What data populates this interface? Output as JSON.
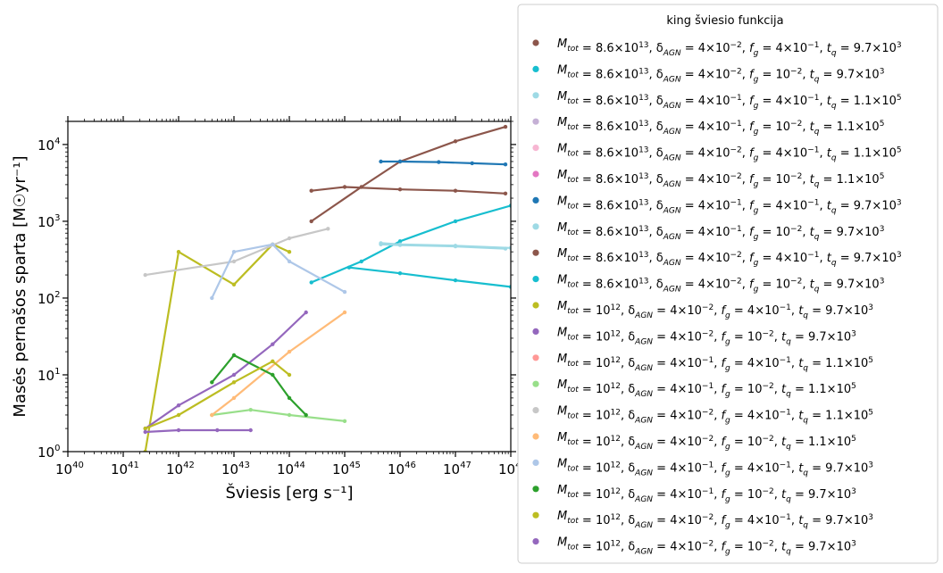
{
  "chart_data": {
    "type": "scatter",
    "xlabel": "Šviesis [erg s⁻¹]",
    "ylabel": "Masės pernašos sparta [M☉yr⁻¹]",
    "x_scale": "log",
    "y_scale": "log",
    "xlim": [
      1e+40,
      1e+48
    ],
    "ylim": [
      1,
      20000
    ],
    "x_ticks": [
      {
        "value": 1e+40,
        "base": "10",
        "exp": "40"
      },
      {
        "value": 1e+41,
        "base": "10",
        "exp": "41"
      },
      {
        "value": 1e+42,
        "base": "10",
        "exp": "42"
      },
      {
        "value": 1e+43,
        "base": "10",
        "exp": "43"
      },
      {
        "value": 1e+44,
        "base": "10",
        "exp": "44"
      },
      {
        "value": 1e+45,
        "base": "10",
        "exp": "45"
      },
      {
        "value": 1e+46,
        "base": "10",
        "exp": "46"
      },
      {
        "value": 1e+47,
        "base": "10",
        "exp": "47"
      },
      {
        "value": 1e+48,
        "base": "10",
        "exp": "48"
      }
    ],
    "y_ticks": [
      {
        "value": 1,
        "base": "10",
        "exp": "0"
      },
      {
        "value": 10,
        "base": "10",
        "exp": "1"
      },
      {
        "value": 100,
        "base": "10",
        "exp": "2"
      },
      {
        "value": 1000,
        "base": "10",
        "exp": "3"
      },
      {
        "value": 10000,
        "base": "10",
        "exp": "4"
      }
    ],
    "legend_title": "king šviesio funkcija",
    "legend_location": "outside-right",
    "grid": false,
    "series": [
      {
        "name": "M_tot = 8.6×10^13, δ_AGN = 4×10^-2, f_g = 4×10^-1, t_q = 9.7×10^3",
        "color": "#8c564b",
        "x": [
          2.5e+44,
          2e+45,
          1e+46,
          1e+47,
          8e+47
        ],
        "y": [
          1000,
          2800,
          6000,
          11000,
          17000
        ]
      },
      {
        "name": "M_tot = 8.6×10^13, δ_AGN = 4×10^-2, f_g = 10^-2, t_q = 9.7×10^3",
        "color": "#17becf",
        "x": [
          2.5e+44,
          2e+45,
          1e+46,
          1e+47,
          1e+48
        ],
        "y": [
          160,
          300,
          550,
          1000,
          1600
        ]
      },
      {
        "name": "M_tot = 8.6×10^13, δ_AGN = 4×10^-1, f_g = 4×10^-1, t_q = 1.1×10^5",
        "color": "#9edae5",
        "x": [
          4.5e+45,
          1e+46,
          1e+47,
          1e+48
        ],
        "y": [
          520,
          500,
          480,
          450
        ]
      },
      {
        "name": "M_tot = 8.6×10^13, δ_AGN = 4×10^-1, f_g = 10^-2, t_q = 1.1×10^5",
        "color": "#c5b0d5",
        "x": [],
        "y": []
      },
      {
        "name": "M_tot = 8.6×10^13, δ_AGN = 4×10^-2, f_g = 4×10^-1, t_q = 1.1×10^5",
        "color": "#f7b6d2",
        "x": [],
        "y": []
      },
      {
        "name": "M_tot = 8.6×10^13, δ_AGN = 4×10^-2, f_g = 10^-2, t_q = 1.1×10^5",
        "color": "#e377c2",
        "x": [],
        "y": []
      },
      {
        "name": "M_tot = 8.6×10^13, δ_AGN = 4×10^-1, f_g = 4×10^-1, t_q = 9.7×10^3",
        "color": "#1f77b4",
        "x": [
          4.5e+45,
          1e+46,
          5e+46,
          2e+47,
          8e+47
        ],
        "y": [
          6000,
          6000,
          5900,
          5700,
          5500
        ]
      },
      {
        "name": "M_tot = 8.6×10^13, δ_AGN = 4×10^-1, f_g = 10^-2, t_q = 9.7×10^3",
        "color": "#9edae5",
        "x": [
          4.5e+45,
          1e+46,
          1e+47,
          8e+47
        ],
        "y": [
          500,
          490,
          470,
          440
        ]
      },
      {
        "name": "M_tot = 8.6×10^13, δ_AGN = 4×10^-2, f_g = 4×10^-1, t_q = 9.7×10^3",
        "color": "#8c564b",
        "x": [
          2.5e+44,
          1e+45,
          1e+46,
          1e+47,
          8e+47
        ],
        "y": [
          2500,
          2800,
          2600,
          2500,
          2300
        ]
      },
      {
        "name": "M_tot = 8.6×10^13, δ_AGN = 4×10^-2, f_g = 10^-2, t_q = 9.7×10^3",
        "color": "#17becf",
        "x": [
          1.2e+45,
          1e+46,
          1e+47,
          1e+48
        ],
        "y": [
          250,
          210,
          170,
          140
        ]
      },
      {
        "name": "M_tot = 10^12, δ_AGN = 4×10^-2, f_g = 4×10^-1, t_q = 9.7×10^3",
        "color": "#bcbd22",
        "x": [
          2.5e+41,
          1e+42,
          1e+43,
          5e+43,
          1e+44
        ],
        "y": [
          1,
          400,
          150,
          500,
          400
        ]
      },
      {
        "name": "M_tot = 10^12, δ_AGN = 4×10^-2, f_g = 10^-2, t_q = 9.7×10^3",
        "color": "#9467bd",
        "x": [
          2.5e+41,
          1e+42,
          1e+43,
          5e+43,
          2e+44
        ],
        "y": [
          2,
          4,
          10,
          25,
          65
        ]
      },
      {
        "name": "M_tot = 10^12, δ_AGN = 4×10^-1, f_g = 4×10^-1, t_q = 1.1×10^5",
        "color": "#ff9896",
        "x": [],
        "y": []
      },
      {
        "name": "M_tot = 10^12, δ_AGN = 4×10^-1, f_g = 10^-2, t_q = 1.1×10^5",
        "color": "#98df8a",
        "x": [
          4e+42,
          2e+43,
          1e+44,
          1e+45
        ],
        "y": [
          3,
          3.5,
          3,
          2.5
        ]
      },
      {
        "name": "M_tot = 10^12, δ_AGN = 4×10^-2, f_g = 4×10^-1, t_q = 1.1×10^5",
        "color": "#c7c7c7",
        "x": [
          2.5e+41,
          1e+43,
          1e+44,
          5e+44
        ],
        "y": [
          200,
          300,
          600,
          800
        ]
      },
      {
        "name": "M_tot = 10^12, δ_AGN = 4×10^-2, f_g = 10^-2, t_q = 1.1×10^5",
        "color": "#ffbb78",
        "x": [
          4e+42,
          1e+43,
          1e+44,
          1e+45
        ],
        "y": [
          3,
          5,
          20,
          65
        ]
      },
      {
        "name": "M_tot = 10^12, δ_AGN = 4×10^-1, f_g = 4×10^-1, t_q = 9.7×10^3",
        "color": "#aec7e8",
        "x": [
          4e+42,
          1e+43,
          5e+43,
          1e+44,
          1e+45
        ],
        "y": [
          100,
          400,
          500,
          300,
          120
        ]
      },
      {
        "name": "M_tot = 10^12, δ_AGN = 4×10^-1, f_g = 10^-2, t_q = 9.7×10^3",
        "color": "#2ca02c",
        "x": [
          4e+42,
          1e+43,
          5e+43,
          1e+44,
          2e+44
        ],
        "y": [
          8,
          18,
          10,
          5,
          3
        ]
      },
      {
        "name": "M_tot = 10^12, δ_AGN = 4×10^-2, f_g = 4×10^-1, t_q = 9.7×10^3",
        "color": "#bcbd22",
        "x": [
          2.5e+41,
          1e+42,
          1e+43,
          5e+43,
          1e+44
        ],
        "y": [
          2,
          3,
          8,
          15,
          10
        ]
      },
      {
        "name": "M_tot = 10^12, δ_AGN = 4×10^-2, f_g = 10^-2, t_q = 9.7×10^3",
        "color": "#9467bd",
        "x": [
          2.5e+41,
          1e+42,
          5e+42,
          2e+43
        ],
        "y": [
          1.8,
          1.9,
          1.9,
          1.9
        ]
      }
    ],
    "legend": [
      {
        "color": "#8c564b",
        "mtot_base": "8.6×10",
        "mtot_exp": "13",
        "dagn_base": "4×10",
        "dagn_exp": "−2",
        "fg_base": "4×10",
        "fg_exp": "−1",
        "tq_base": "9.7×10",
        "tq_exp": "3"
      },
      {
        "color": "#17becf",
        "mtot_base": "8.6×10",
        "mtot_exp": "13",
        "dagn_base": "4×10",
        "dagn_exp": "−2",
        "fg_base": "10",
        "fg_exp": "−2",
        "tq_base": "9.7×10",
        "tq_exp": "3"
      },
      {
        "color": "#9edae5",
        "mtot_base": "8.6×10",
        "mtot_exp": "13",
        "dagn_base": "4×10",
        "dagn_exp": "−1",
        "fg_base": "4×10",
        "fg_exp": "−1",
        "tq_base": "1.1×10",
        "tq_exp": "5"
      },
      {
        "color": "#c5b0d5",
        "mtot_base": "8.6×10",
        "mtot_exp": "13",
        "dagn_base": "4×10",
        "dagn_exp": "−1",
        "fg_base": "10",
        "fg_exp": "−2",
        "tq_base": "1.1×10",
        "tq_exp": "5"
      },
      {
        "color": "#f7b6d2",
        "mtot_base": "8.6×10",
        "mtot_exp": "13",
        "dagn_base": "4×10",
        "dagn_exp": "−2",
        "fg_base": "4×10",
        "fg_exp": "−1",
        "tq_base": "1.1×10",
        "tq_exp": "5"
      },
      {
        "color": "#e377c2",
        "mtot_base": "8.6×10",
        "mtot_exp": "13",
        "dagn_base": "4×10",
        "dagn_exp": "−2",
        "fg_base": "10",
        "fg_exp": "−2",
        "tq_base": "1.1×10",
        "tq_exp": "5"
      },
      {
        "color": "#1f77b4",
        "mtot_base": "8.6×10",
        "mtot_exp": "13",
        "dagn_base": "4×10",
        "dagn_exp": "−1",
        "fg_base": "4×10",
        "fg_exp": "−1",
        "tq_base": "9.7×10",
        "tq_exp": "3"
      },
      {
        "color": "#9edae5",
        "mtot_base": "8.6×10",
        "mtot_exp": "13",
        "dagn_base": "4×10",
        "dagn_exp": "−1",
        "fg_base": "10",
        "fg_exp": "−2",
        "tq_base": "9.7×10",
        "tq_exp": "3"
      },
      {
        "color": "#8c564b",
        "mtot_base": "8.6×10",
        "mtot_exp": "13",
        "dagn_base": "4×10",
        "dagn_exp": "−2",
        "fg_base": "4×10",
        "fg_exp": "−1",
        "tq_base": "9.7×10",
        "tq_exp": "3"
      },
      {
        "color": "#17becf",
        "mtot_base": "8.6×10",
        "mtot_exp": "13",
        "dagn_base": "4×10",
        "dagn_exp": "−2",
        "fg_base": "10",
        "fg_exp": "−2",
        "tq_base": "9.7×10",
        "tq_exp": "3"
      },
      {
        "color": "#bcbd22",
        "mtot_base": "10",
        "mtot_exp": "12",
        "dagn_base": "4×10",
        "dagn_exp": "−2",
        "fg_base": "4×10",
        "fg_exp": "−1",
        "tq_base": "9.7×10",
        "tq_exp": "3"
      },
      {
        "color": "#9467bd",
        "mtot_base": "10",
        "mtot_exp": "12",
        "dagn_base": "4×10",
        "dagn_exp": "−2",
        "fg_base": "10",
        "fg_exp": "−2",
        "tq_base": "9.7×10",
        "tq_exp": "3"
      },
      {
        "color": "#ff9896",
        "mtot_base": "10",
        "mtot_exp": "12",
        "dagn_base": "4×10",
        "dagn_exp": "−1",
        "fg_base": "4×10",
        "fg_exp": "−1",
        "tq_base": "1.1×10",
        "tq_exp": "5"
      },
      {
        "color": "#98df8a",
        "mtot_base": "10",
        "mtot_exp": "12",
        "dagn_base": "4×10",
        "dagn_exp": "−1",
        "fg_base": "10",
        "fg_exp": "−2",
        "tq_base": "1.1×10",
        "tq_exp": "5"
      },
      {
        "color": "#c7c7c7",
        "mtot_base": "10",
        "mtot_exp": "12",
        "dagn_base": "4×10",
        "dagn_exp": "−2",
        "fg_base": "4×10",
        "fg_exp": "−1",
        "tq_base": "1.1×10",
        "tq_exp": "5"
      },
      {
        "color": "#ffbb78",
        "mtot_base": "10",
        "mtot_exp": "12",
        "dagn_base": "4×10",
        "dagn_exp": "−2",
        "fg_base": "10",
        "fg_exp": "−2",
        "tq_base": "1.1×10",
        "tq_exp": "5"
      },
      {
        "color": "#aec7e8",
        "mtot_base": "10",
        "mtot_exp": "12",
        "dagn_base": "4×10",
        "dagn_exp": "−1",
        "fg_base": "4×10",
        "fg_exp": "−1",
        "tq_base": "9.7×10",
        "tq_exp": "3"
      },
      {
        "color": "#2ca02c",
        "mtot_base": "10",
        "mtot_exp": "12",
        "dagn_base": "4×10",
        "dagn_exp": "−1",
        "fg_base": "10",
        "fg_exp": "−2",
        "tq_base": "9.7×10",
        "tq_exp": "3"
      },
      {
        "color": "#bcbd22",
        "mtot_base": "10",
        "mtot_exp": "12",
        "dagn_base": "4×10",
        "dagn_exp": "−2",
        "fg_base": "4×10",
        "fg_exp": "−1",
        "tq_base": "9.7×10",
        "tq_exp": "3"
      },
      {
        "color": "#9467bd",
        "mtot_base": "10",
        "mtot_exp": "12",
        "dagn_base": "4×10",
        "dagn_exp": "−2",
        "fg_base": "10",
        "fg_exp": "−2",
        "tq_base": "9.7×10",
        "tq_exp": "3"
      }
    ]
  }
}
